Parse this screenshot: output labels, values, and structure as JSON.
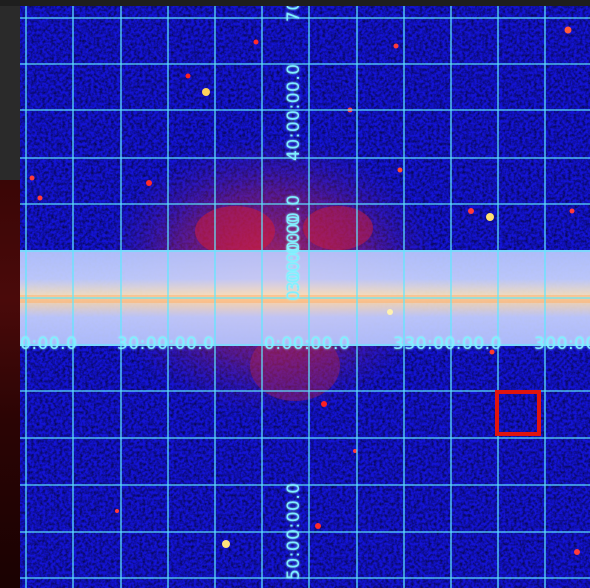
{
  "viewer": {
    "colors": {
      "background": "#1212d8",
      "grid": "#5fe9ff",
      "plane": "#c8d8ff",
      "selection": "#e0140e"
    },
    "longitude_labels": [
      "0:00.0",
      "30:00:00.0",
      "0:00:00.0",
      "330:00:00.0",
      "300:00"
    ],
    "latitude_labels": [
      "70",
      "40:00:00.0",
      "30:00:00.0",
      "0:00:00.0",
      "50:00:00.0"
    ],
    "selection_region": "square"
  }
}
